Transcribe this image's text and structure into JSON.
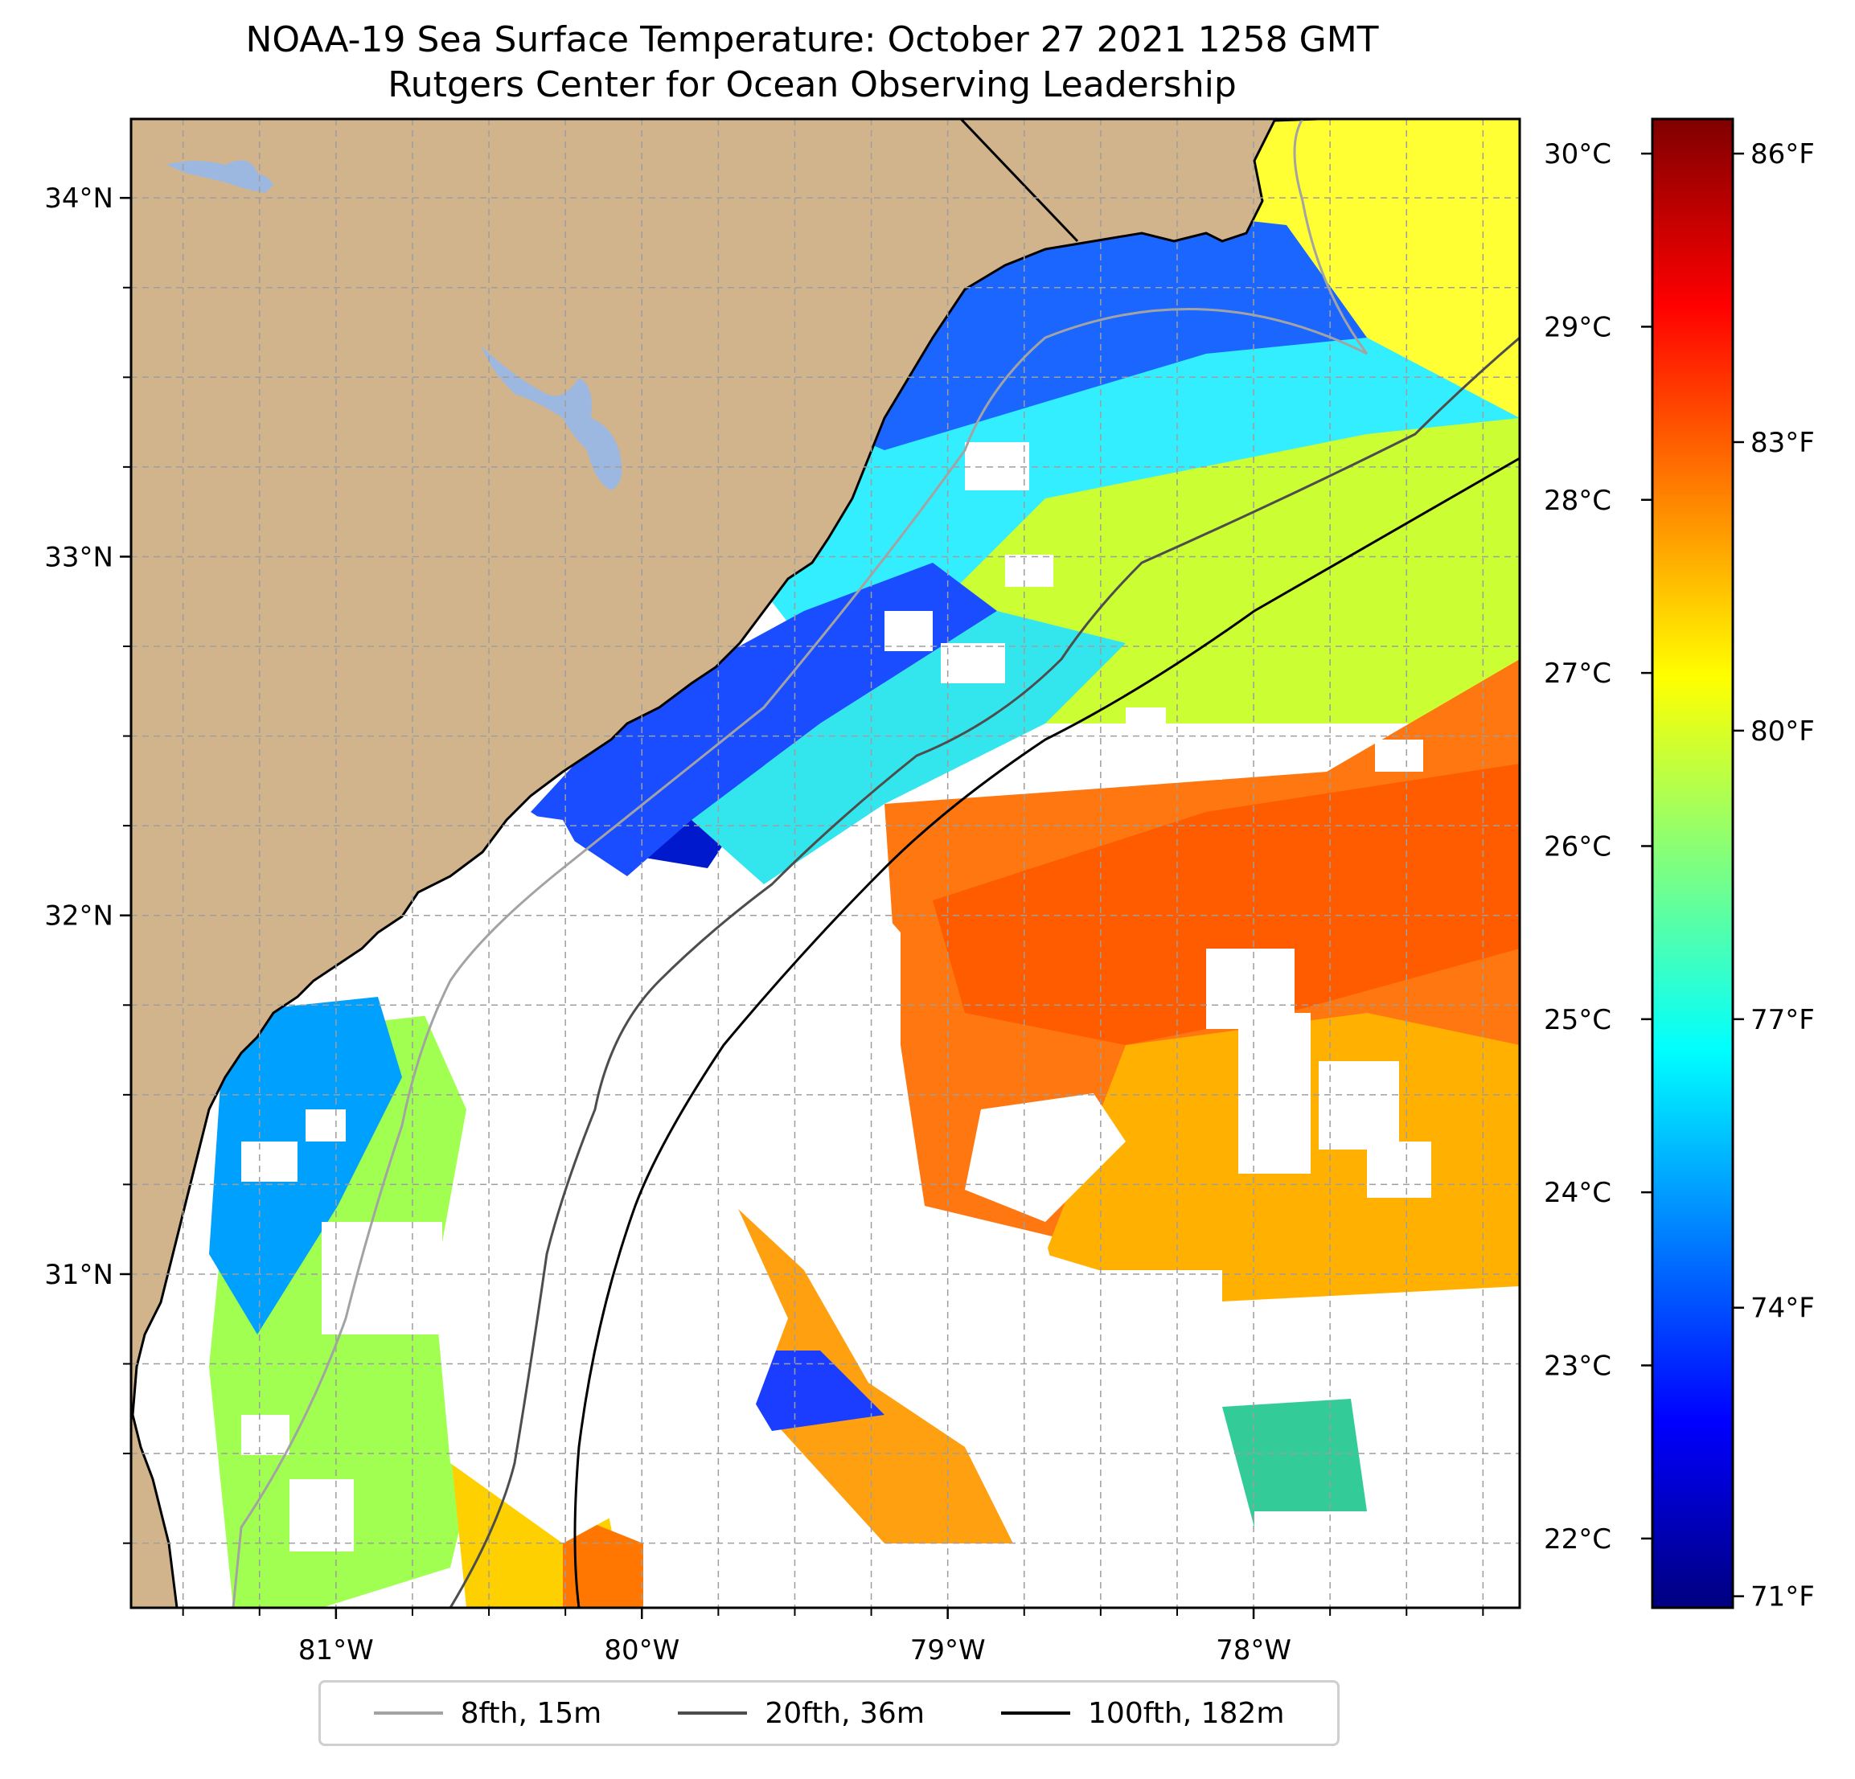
{
  "title": {
    "line1": "NOAA-19 Sea Surface Temperature: October 27 2021 1258 GMT",
    "line2": "Rutgers Center for Ocean Observing Leadership"
  },
  "map": {
    "lat_range": [
      30.07,
      34.22
    ],
    "lon_range": [
      -81.67,
      -77.13
    ],
    "lat_ticks": [
      {
        "value": 34,
        "label": "34°N"
      },
      {
        "value": 33,
        "label": "33°N"
      },
      {
        "value": 32,
        "label": "32°N"
      },
      {
        "value": 31,
        "label": "31°N"
      }
    ],
    "lon_ticks": [
      {
        "value": -81,
        "label": "81°W"
      },
      {
        "value": -80,
        "label": "80°W"
      },
      {
        "value": -79,
        "label": "79°W"
      },
      {
        "value": -78,
        "label": "78°W"
      }
    ],
    "gridlines": true,
    "land_color": "#d2b48c",
    "lake_color": "#9cb8e0",
    "no_data_color": "#ffffff"
  },
  "colorbar": {
    "celsius_range": [
      21.6,
      30.2
    ],
    "celsius_ticks": [
      {
        "value": 30,
        "label": "30°C"
      },
      {
        "value": 29,
        "label": "29°C"
      },
      {
        "value": 28,
        "label": "28°C"
      },
      {
        "value": 27,
        "label": "27°C"
      },
      {
        "value": 26,
        "label": "26°C"
      },
      {
        "value": 25,
        "label": "25°C"
      },
      {
        "value": 24,
        "label": "24°C"
      },
      {
        "value": 23,
        "label": "23°C"
      },
      {
        "value": 22,
        "label": "22°C"
      }
    ],
    "fahrenheit_ticks": [
      {
        "value": 86,
        "label": "86°F"
      },
      {
        "value": 83,
        "label": "83°F"
      },
      {
        "value": 80,
        "label": "80°F"
      },
      {
        "value": 77,
        "label": "77°F"
      },
      {
        "value": 74,
        "label": "74°F"
      },
      {
        "value": 71,
        "label": "71°F"
      }
    ],
    "colormap": [
      "#00007f",
      "#0000ff",
      "#007fff",
      "#00ffff",
      "#7fff7f",
      "#ffff00",
      "#ff7f00",
      "#ff0000",
      "#7f0000"
    ]
  },
  "legend": {
    "items": [
      {
        "label": "8fth, 15m",
        "color": "#a3a3a3"
      },
      {
        "label": "20fth, 36m",
        "color": "#4d4d4d"
      },
      {
        "label": "100fth, 182m",
        "color": "#000000"
      }
    ]
  }
}
